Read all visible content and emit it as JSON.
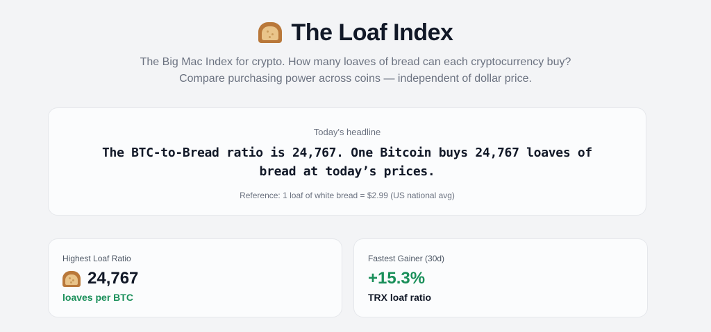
{
  "header": {
    "icon": "bread-loaf-icon",
    "title": "The Loaf Index",
    "subtitle_line1": "The Big Mac Index for crypto. How many loaves of bread can each cryptocurrency buy?",
    "subtitle_line2": "Compare purchasing power across coins — independent of dollar price."
  },
  "headline_card": {
    "label": "Today's headline",
    "text": "The BTC-to-Bread ratio is 24,767. One Bitcoin buys 24,767 loaves of bread at today’s prices.",
    "reference": "Reference: 1 loaf of white bread = $2.99 (US national avg)"
  },
  "stats": {
    "highest": {
      "label": "Highest Loaf Ratio",
      "icon": "bread-loaf-icon",
      "value": "24,767",
      "sub": "loaves per BTC"
    },
    "gainer": {
      "label": "Fastest Gainer (30d)",
      "value": "+15.3%",
      "sub": "TRX loaf ratio"
    }
  },
  "colors": {
    "background": "#f3f4f6",
    "accent_green": "#1a8f5a",
    "text_primary": "#111827",
    "text_muted": "#6b7280"
  }
}
